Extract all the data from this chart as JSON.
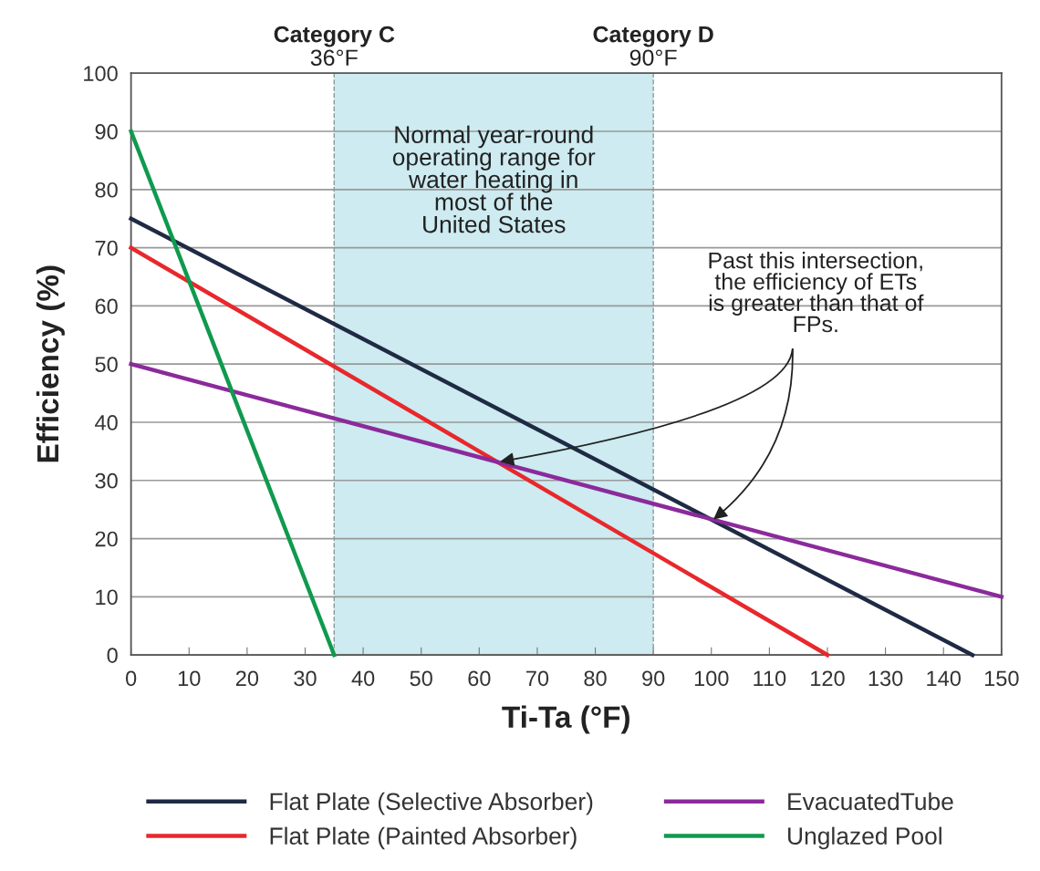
{
  "chart_data": {
    "type": "line",
    "xlabel": "Ti-Ta (°F)",
    "ylabel": "Efficiency (%)",
    "xlim": [
      0,
      150
    ],
    "xticks": [
      0,
      10,
      20,
      30,
      40,
      50,
      60,
      70,
      80,
      90,
      100,
      110,
      120,
      130,
      140,
      150
    ],
    "ylim": [
      0,
      100
    ],
    "yticks": [
      0,
      10,
      20,
      30,
      40,
      50,
      60,
      70,
      80,
      90,
      100
    ],
    "grid": "y",
    "legend": "bottom",
    "marker": "none",
    "line_style": "solid",
    "series": [
      {
        "name": "Flat Plate (Selective Absorber)",
        "color": "#1f2a44",
        "x": [
          0,
          145
        ],
        "values": [
          75,
          0
        ]
      },
      {
        "name": "Flat Plate (Painted Absorber)",
        "color": "#e8282b",
        "x": [
          0,
          120
        ],
        "values": [
          70,
          0
        ]
      },
      {
        "name": "EvacuatedTube",
        "color": "#8b2a9b",
        "x": [
          0,
          150
        ],
        "values": [
          50,
          10
        ]
      },
      {
        "name": "Unglazed Pool",
        "color": "#0f9a4e",
        "x": [
          0,
          35
        ],
        "values": [
          90,
          0
        ]
      }
    ],
    "bands": [
      {
        "axis": "x",
        "from": 35,
        "to": 90,
        "label": "Normal year-round\noperating range for\nwater heating in\nmost of the\nUnited States",
        "color": "#cdebf0"
      }
    ],
    "ref_lines": [
      {
        "axis": "x",
        "value": 35,
        "label": "Category C\n36°F",
        "color": "#8a9a9e",
        "line_style": "dashed"
      },
      {
        "axis": "x",
        "value": 90,
        "label": "Category D\n90°F",
        "color": "#8a9a9e",
        "line_style": "dashed"
      }
    ],
    "annotations": [
      {
        "text": "Past this intersection,\nthe efficiency of ETs\nis greater than that of\nFPs.",
        "x": 100,
        "y": 23
      }
    ]
  }
}
